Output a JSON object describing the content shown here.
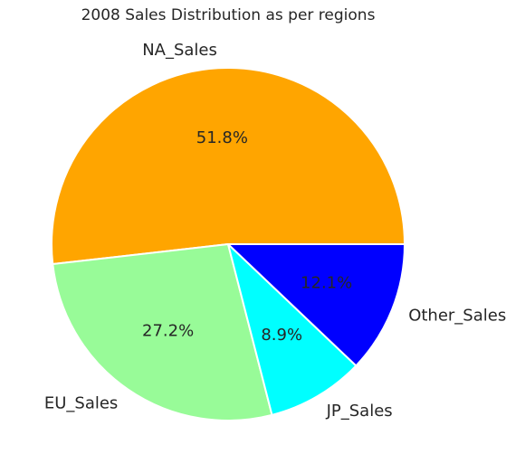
{
  "chart_data": {
    "type": "pie",
    "title": "2008 Sales Distribution as per regions",
    "categories": [
      "NA_Sales",
      "EU_Sales",
      "JP_Sales",
      "Other_Sales"
    ],
    "values": [
      51.8,
      27.2,
      8.9,
      12.1
    ],
    "value_labels": [
      "51.8%",
      "27.2%",
      "8.9%",
      "12.1%"
    ],
    "colors": [
      "#ffa500",
      "#98fb98",
      "#00ffff",
      "#0000ff"
    ],
    "start_angle_deg": 0,
    "direction": "counterclockwise",
    "edge_color": "#ffffff",
    "legend": "none"
  }
}
